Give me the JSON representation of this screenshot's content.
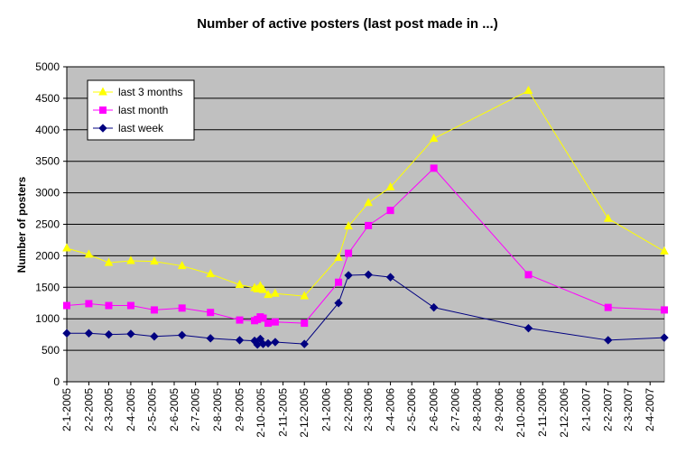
{
  "chart_data": {
    "type": "line",
    "title": "Number of active posters (last post made in ...)",
    "xlabel": "",
    "ylabel": "Number of posters",
    "ylim": [
      0,
      5000
    ],
    "y_ticks": [
      0,
      500,
      1000,
      1500,
      2000,
      2500,
      3000,
      3500,
      4000,
      4500,
      5000
    ],
    "x_tick_labels": [
      "2-1-2005",
      "2-2-2005",
      "2-3-2005",
      "2-4-2005",
      "2-5-2005",
      "2-6-2005",
      "2-7-2005",
      "2-8-2005",
      "2-9-2005",
      "2-10-2005",
      "2-11-2005",
      "2-12-2005",
      "2-1-2006",
      "2-2-2006",
      "2-3-2006",
      "2-4-2006",
      "2-5-2006",
      "2-6-2006",
      "2-7-2006",
      "2-8-2006",
      "2-9-2006",
      "2-10-2006",
      "2-11-2006",
      "2-12-2006",
      "2-1-2007",
      "2-2-2007",
      "2-3-2007",
      "2-4-2007"
    ],
    "x_range": [
      "2005-01-02",
      "2007-04-22"
    ],
    "grid": true,
    "legend": "top-left",
    "plot_background": "#c0c0c0",
    "series": [
      {
        "name": "last 3 months",
        "color": "#ffff00",
        "marker": "triangle",
        "points": [
          [
            "2005-01-02",
            2120
          ],
          [
            "2005-02-02",
            2020
          ],
          [
            "2005-03-02",
            1890
          ],
          [
            "2005-04-02",
            1920
          ],
          [
            "2005-05-05",
            1910
          ],
          [
            "2005-06-13",
            1840
          ],
          [
            "2005-07-23",
            1710
          ],
          [
            "2005-09-02",
            1540
          ],
          [
            "2005-09-23",
            1490
          ],
          [
            "2005-09-27",
            1470
          ],
          [
            "2005-10-01",
            1520
          ],
          [
            "2005-10-05",
            1460
          ],
          [
            "2005-10-12",
            1380
          ],
          [
            "2005-10-22",
            1400
          ],
          [
            "2005-12-02",
            1360
          ],
          [
            "2006-01-19",
            1970
          ],
          [
            "2006-02-02",
            2470
          ],
          [
            "2006-03-02",
            2840
          ],
          [
            "2006-04-02",
            3090
          ],
          [
            "2006-06-02",
            3860
          ],
          [
            "2006-10-13",
            4620
          ],
          [
            "2007-02-02",
            2590
          ],
          [
            "2007-04-22",
            2070
          ]
        ]
      },
      {
        "name": "last month",
        "color": "#ff00ff",
        "marker": "square",
        "points": [
          [
            "2005-01-02",
            1210
          ],
          [
            "2005-02-02",
            1240
          ],
          [
            "2005-03-02",
            1210
          ],
          [
            "2005-04-02",
            1210
          ],
          [
            "2005-05-05",
            1140
          ],
          [
            "2005-06-13",
            1170
          ],
          [
            "2005-07-23",
            1100
          ],
          [
            "2005-09-02",
            980
          ],
          [
            "2005-09-23",
            970
          ],
          [
            "2005-09-27",
            990
          ],
          [
            "2005-10-01",
            1030
          ],
          [
            "2005-10-05",
            1010
          ],
          [
            "2005-10-12",
            930
          ],
          [
            "2005-10-22",
            950
          ],
          [
            "2005-12-02",
            930
          ],
          [
            "2006-01-19",
            1580
          ],
          [
            "2006-02-02",
            2040
          ],
          [
            "2006-03-02",
            2480
          ],
          [
            "2006-04-02",
            2720
          ],
          [
            "2006-06-02",
            3390
          ],
          [
            "2006-10-13",
            1700
          ],
          [
            "2007-02-02",
            1180
          ],
          [
            "2007-04-22",
            1140
          ]
        ]
      },
      {
        "name": "last week",
        "color": "#000080",
        "marker": "diamond",
        "points": [
          [
            "2005-01-02",
            770
          ],
          [
            "2005-02-02",
            770
          ],
          [
            "2005-03-02",
            750
          ],
          [
            "2005-04-02",
            760
          ],
          [
            "2005-05-05",
            720
          ],
          [
            "2005-06-13",
            740
          ],
          [
            "2005-07-23",
            690
          ],
          [
            "2005-09-02",
            660
          ],
          [
            "2005-09-23",
            650
          ],
          [
            "2005-09-27",
            590
          ],
          [
            "2005-10-01",
            680
          ],
          [
            "2005-10-05",
            600
          ],
          [
            "2005-10-12",
            610
          ],
          [
            "2005-10-22",
            630
          ],
          [
            "2005-12-02",
            600
          ],
          [
            "2006-01-19",
            1250
          ],
          [
            "2006-02-02",
            1690
          ],
          [
            "2006-03-02",
            1700
          ],
          [
            "2006-04-02",
            1660
          ],
          [
            "2006-06-02",
            1180
          ],
          [
            "2006-10-13",
            850
          ],
          [
            "2007-02-02",
            660
          ],
          [
            "2007-04-22",
            700
          ]
        ]
      }
    ]
  }
}
